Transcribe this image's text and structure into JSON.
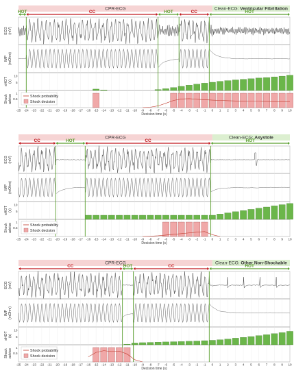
{
  "figure": {
    "x_label": "Decision time (s)",
    "x_ticks": [
      -25,
      -24,
      -23,
      -22,
      -21,
      -20,
      -19,
      -18,
      -17,
      -16,
      -15,
      -14,
      -13,
      -12,
      -11,
      -10,
      -9,
      -8,
      -7,
      -6,
      -5,
      -4,
      -3,
      -2,
      -1,
      0,
      1,
      2,
      3,
      4,
      5,
      6,
      7,
      8,
      9,
      10
    ],
    "row_labels": {
      "ecg": [
        "ECG",
        "(mV)"
      ],
      "imp": [
        "IMP",
        "(mOhm)"
      ],
      "shot": [
        "sHOT",
        "(s)"
      ],
      "shock": [
        "Shock",
        "advice"
      ]
    },
    "legend": {
      "probability": "Shock probability",
      "decision": "Shock decision"
    },
    "shot_ticks": [
      "5",
      "10"
    ],
    "shock_ticks": [
      "1",
      "0.5"
    ],
    "colors": {
      "cc": "#c0181d",
      "hot": "#5a9f2f",
      "cpr_banner": "#f6d4d4",
      "clean_banner": "#dcefd0",
      "bar": "#6bb64a",
      "shock_fill": "#f0a8a8",
      "prob_line": "#c0392b",
      "trace": "#333333"
    }
  },
  "chart_data": [
    {
      "type": "line",
      "banner_left": "CPR-ECG",
      "banner_right_prefix": "Clean-ECG: ",
      "banner_right_bold": "Ventricular Fibrillation",
      "phases": [
        {
          "label": "HOT",
          "kind": "hot",
          "start": -25,
          "end": -24
        },
        {
          "label": "CC",
          "kind": "cc",
          "start": -24,
          "end": -7
        },
        {
          "label": "HOT",
          "kind": "hot",
          "start": -7,
          "end": -4.3
        },
        {
          "label": "CC",
          "kind": "cc",
          "start": -4.3,
          "end": -0.4
        },
        {
          "label": "HOT",
          "kind": "hot",
          "start": -0.4,
          "end": 10
        }
      ],
      "sHOT": {
        "x": [
          -15,
          -14,
          -13,
          -12,
          -11,
          -10,
          -9,
          -8,
          -7,
          -6,
          -5,
          -4,
          -3,
          -2,
          -1,
          0,
          1,
          2,
          3,
          4,
          5,
          6,
          7,
          8,
          9,
          10
        ],
        "values": [
          1.2,
          0.5,
          0,
          0,
          0,
          0,
          0,
          0,
          0.8,
          1.5,
          2.5,
          3.5,
          4.5,
          5.4,
          6.2,
          7.0,
          7.8,
          8.4,
          9.0,
          9.5,
          10.0,
          10.6,
          11.0,
          11.6,
          12.2,
          13.0
        ]
      },
      "shock_decision": {
        "x": [
          -15,
          -5,
          -4,
          -3,
          -2,
          -1,
          0,
          1,
          2,
          3,
          4,
          5,
          6,
          7,
          8,
          9,
          10
        ],
        "values": [
          1,
          1,
          1,
          1,
          1,
          1,
          1,
          1,
          1,
          1,
          1,
          1,
          1,
          1,
          1,
          1,
          1
        ]
      },
      "shock_probability": {
        "x": [
          -9,
          -8,
          -7,
          -6,
          -5,
          -4,
          -3,
          -2,
          -1,
          0,
          1,
          2,
          3,
          4,
          5,
          6,
          7,
          8,
          9,
          10
        ],
        "values": [
          0.0,
          0.03,
          0.12,
          0.3,
          0.5,
          0.6,
          0.62,
          0.58,
          0.55,
          0.52,
          0.5,
          0.48,
          0.46,
          0.45,
          0.44,
          0.44,
          0.43,
          0.42,
          0.42,
          0.42
        ]
      }
    },
    {
      "type": "line",
      "banner_left": "CPR-ECG",
      "banner_right_prefix": "Clean-ECG: ",
      "banner_right_bold": "Asystole",
      "phases": [
        {
          "label": "CC",
          "kind": "cc",
          "start": -25,
          "end": -20.2
        },
        {
          "label": "HOT",
          "kind": "hot",
          "start": -20.2,
          "end": -16.4
        },
        {
          "label": "CC",
          "kind": "cc",
          "start": -16.4,
          "end": -0.2
        },
        {
          "label": "HOT",
          "kind": "hot",
          "start": -0.2,
          "end": 10
        }
      ],
      "sHOT": {
        "x": [
          -16,
          -15,
          -14,
          -13,
          -12,
          -11,
          -10,
          -9,
          -8,
          -7,
          -6,
          -5,
          -4,
          -3,
          -2,
          -1,
          0,
          1,
          2,
          3,
          4,
          5,
          6,
          7,
          8,
          9,
          10
        ],
        "values": [
          3.5,
          3.5,
          3.5,
          3.5,
          3.5,
          3.5,
          3.5,
          3.5,
          3.5,
          3.5,
          3.5,
          3.5,
          3.5,
          3.5,
          3.5,
          3.5,
          3.5,
          4.5,
          5.5,
          6.5,
          7.5,
          8.5,
          9.5,
          10.5,
          11.5,
          12.5,
          13.5
        ]
      },
      "shock_decision": {
        "x": [
          -6,
          -5,
          -4,
          -3,
          -2,
          -1
        ],
        "values": [
          1,
          1,
          1,
          1,
          1,
          1
        ]
      },
      "shock_probability": {
        "x": [
          -9,
          -8,
          -7,
          -6,
          -5,
          -4,
          -3,
          -2,
          -1,
          0,
          1
        ],
        "values": [
          0.0,
          0.02,
          0.05,
          0.1,
          0.15,
          0.2,
          0.25,
          0.3,
          0.34,
          0.12,
          0.0
        ]
      }
    },
    {
      "type": "line",
      "banner_left": "CPR-ECG",
      "banner_right_prefix": "Clean-ECG: ",
      "banner_right_bold": "Other Non-Shockable",
      "phases": [
        {
          "label": "CC",
          "kind": "cc",
          "start": -25,
          "end": -11.6
        },
        {
          "label": "HOT",
          "kind": "hot",
          "start": -11.6,
          "end": -10.2
        },
        {
          "label": "CC",
          "kind": "cc",
          "start": -10.2,
          "end": -0.4
        },
        {
          "label": "HOT",
          "kind": "hot",
          "start": -0.4,
          "end": 10
        }
      ],
      "sHOT": {
        "x": [
          -15,
          -14,
          -13,
          -12,
          -11,
          -10,
          -9,
          -8,
          -7,
          -6,
          -5,
          -4,
          -3,
          -2,
          -1,
          0,
          1,
          2,
          3,
          4,
          5,
          6,
          7,
          8,
          9,
          10
        ],
        "values": [
          0,
          0,
          0,
          0,
          0.5,
          1.5,
          1.8,
          2.0,
          2.2,
          2.4,
          2.6,
          2.8,
          3.0,
          3.2,
          3.5,
          3.8,
          4.3,
          4.9,
          5.6,
          6.3,
          7.0,
          7.8,
          8.6,
          9.5,
          10.4,
          11.4
        ]
      },
      "shock_decision": {
        "x": [
          -15,
          -14,
          -13,
          -12,
          -11
        ],
        "values": [
          1,
          1,
          1,
          1,
          1
        ]
      },
      "shock_probability": {
        "x": [
          -16,
          -15,
          -14,
          -13,
          -12,
          -11,
          -10,
          -9
        ],
        "values": [
          0.35,
          0.66,
          0.78,
          0.72,
          0.75,
          0.55,
          0.15,
          0.0
        ]
      }
    }
  ]
}
